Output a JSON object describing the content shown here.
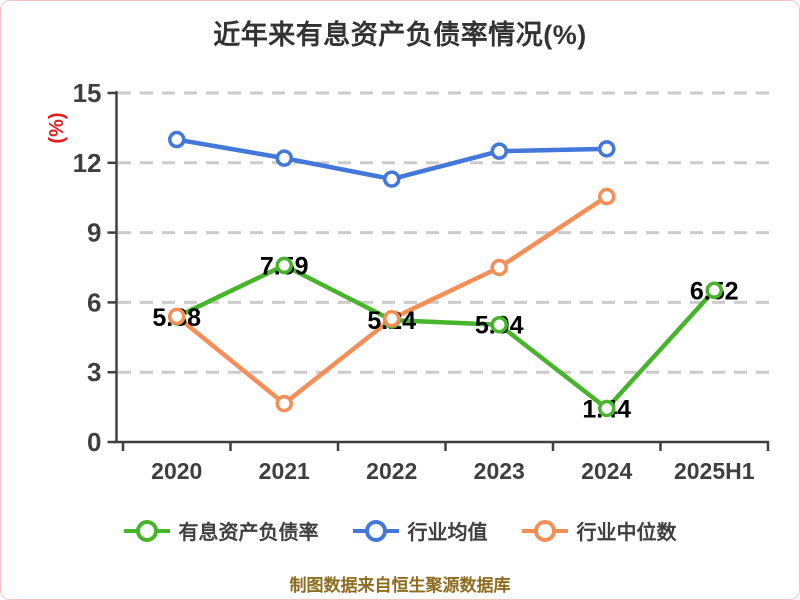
{
  "chart_data": {
    "type": "line",
    "title": "近年来有息资产负债率情况(%)",
    "ylabel": "(%)",
    "categories": [
      "2020",
      "2021",
      "2022",
      "2023",
      "2024",
      "2025H1"
    ],
    "series": [
      {
        "name": "有息资产负债率",
        "color": "#47b42c",
        "values": [
          5.38,
          7.59,
          5.24,
          5.04,
          1.44,
          6.52
        ],
        "data_labels": [
          "5.38",
          "7.59",
          "5.24",
          "5.04",
          "1.44",
          "6.52"
        ]
      },
      {
        "name": "行业均值",
        "color": "#4377d9",
        "values": [
          13.0,
          12.2,
          11.3,
          12.5,
          12.6,
          null
        ],
        "data_labels": null
      },
      {
        "name": "行业中位数",
        "color": "#f68e58",
        "values": [
          5.4,
          1.65,
          5.3,
          7.5,
          10.55,
          null
        ],
        "data_labels": null
      }
    ],
    "ylim": [
      0,
      15
    ],
    "yticks": [
      0,
      3,
      6,
      9,
      12,
      15
    ],
    "grid": "horizontal-dashed",
    "legend_position": "bottom",
    "source_note": "制图数据来自恒生聚源数据库",
    "colors": {
      "title": "#333333",
      "axis": "#404040",
      "tick_label": "#3f3f3f",
      "grid": "#cbcbcb",
      "ylabel": "#e31c1c",
      "data_label": "#000000",
      "note": "#8d6c1f",
      "frame_border": "#f3c3c3",
      "marker_fill": "#ffffff"
    }
  }
}
